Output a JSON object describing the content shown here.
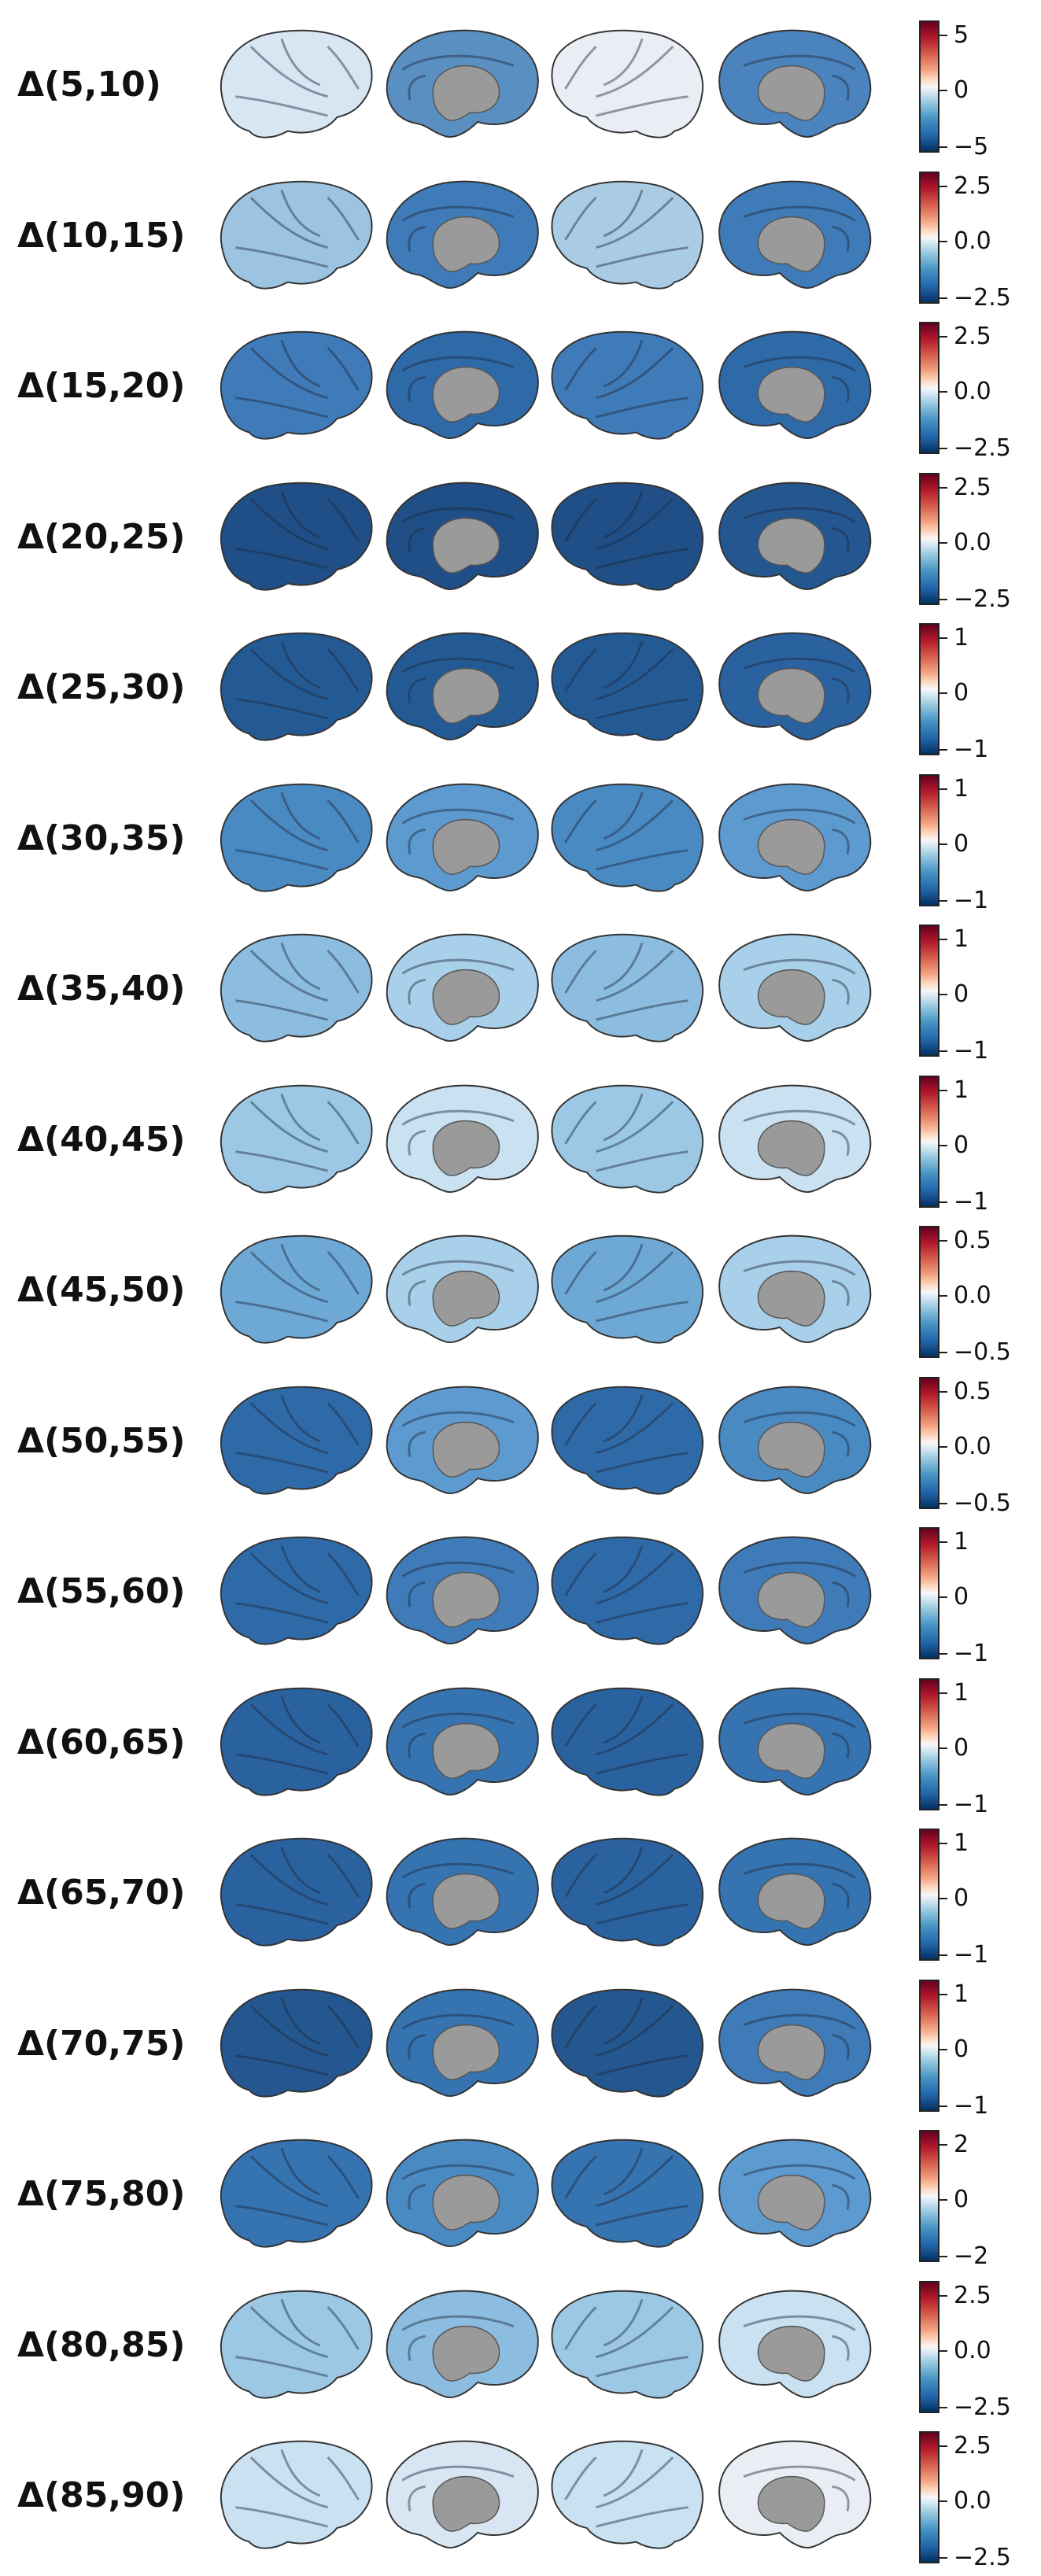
{
  "rows": [
    {
      "label": "Δ(5,10)",
      "ticks": [
        "5",
        "0",
        "−5"
      ],
      "tone": [
        "#d7e6f2",
        "#5a8fc2",
        "#e9eef4",
        "#4a83bd"
      ]
    },
    {
      "label": "Δ(10,15)",
      "ticks": [
        "2.5",
        "0.0",
        "−2.5"
      ],
      "tone": [
        "#9cc3e0",
        "#3f7bb8",
        "#a9cbe4",
        "#3f7bb8"
      ]
    },
    {
      "label": "Δ(15,20)",
      "ticks": [
        "2.5",
        "0.0",
        "−2.5"
      ],
      "tone": [
        "#3f7bb8",
        "#2e69a8",
        "#3f7bb8",
        "#2e69a8"
      ]
    },
    {
      "label": "Δ(20,25)",
      "ticks": [
        "2.5",
        "0.0",
        "−2.5"
      ],
      "tone": [
        "#1f4f86",
        "#1f4f86",
        "#1f4f86",
        "#24578f"
      ]
    },
    {
      "label": "Δ(25,30)",
      "ticks": [
        "1",
        "0",
        "−1"
      ],
      "tone": [
        "#245a94",
        "#245a94",
        "#245a94",
        "#2a62a0"
      ]
    },
    {
      "label": "Δ(30,35)",
      "ticks": [
        "1",
        "0",
        "−1"
      ],
      "tone": [
        "#4a8ac3",
        "#5d9ad0",
        "#4a8ac3",
        "#5d9ad0"
      ]
    },
    {
      "label": "Δ(35,40)",
      "ticks": [
        "1",
        "0",
        "−1"
      ],
      "tone": [
        "#8cbde0",
        "#a9d0ea",
        "#8cbde0",
        "#a9d0ea"
      ]
    },
    {
      "label": "Δ(40,45)",
      "ticks": [
        "1",
        "0",
        "−1"
      ],
      "tone": [
        "#9cc8e6",
        "#c9e1f1",
        "#9cc8e6",
        "#c9e1f1"
      ]
    },
    {
      "label": "Δ(45,50)",
      "ticks": [
        "0.5",
        "0.0",
        "−0.5"
      ],
      "tone": [
        "#6ea9d6",
        "#a9d0ea",
        "#6ea9d6",
        "#a9d0ea"
      ]
    },
    {
      "label": "Δ(50,55)",
      "ticks": [
        "0.5",
        "0.0",
        "−0.5"
      ],
      "tone": [
        "#2f6aa8",
        "#5d9ad0",
        "#2f6aa8",
        "#4a8ac3"
      ]
    },
    {
      "label": "Δ(55,60)",
      "ticks": [
        "1",
        "0",
        "−1"
      ],
      "tone": [
        "#2f6aa8",
        "#3f7bb8",
        "#2f6aa8",
        "#3f7bb8"
      ]
    },
    {
      "label": "Δ(60,65)",
      "ticks": [
        "1",
        "0",
        "−1"
      ],
      "tone": [
        "#2a62a0",
        "#3573b1",
        "#2a62a0",
        "#3573b1"
      ]
    },
    {
      "label": "Δ(65,70)",
      "ticks": [
        "1",
        "0",
        "−1"
      ],
      "tone": [
        "#2a62a0",
        "#3573b1",
        "#2a62a0",
        "#3573b1"
      ]
    },
    {
      "label": "Δ(70,75)",
      "ticks": [
        "1",
        "0",
        "−1"
      ],
      "tone": [
        "#24578f",
        "#3573b1",
        "#24578f",
        "#3f7bb8"
      ]
    },
    {
      "label": "Δ(75,80)",
      "ticks": [
        "2",
        "0",
        "−2"
      ],
      "tone": [
        "#3573b1",
        "#4a8ac3",
        "#3573b1",
        "#5d9ad0"
      ]
    },
    {
      "label": "Δ(80,85)",
      "ticks": [
        "2.5",
        "0.0",
        "−2.5"
      ],
      "tone": [
        "#9cc8e6",
        "#8cbde0",
        "#9cc8e6",
        "#c9e1f1"
      ]
    },
    {
      "label": "Δ(85,90)",
      "ticks": [
        "2.5",
        "0.0",
        "−2.5"
      ],
      "tone": [
        "#c9e1f1",
        "#d7e6f2",
        "#c9e1f1",
        "#e9eef4"
      ]
    }
  ],
  "views": [
    "lateral-left",
    "medial-left",
    "lateral-right",
    "medial-right"
  ]
}
